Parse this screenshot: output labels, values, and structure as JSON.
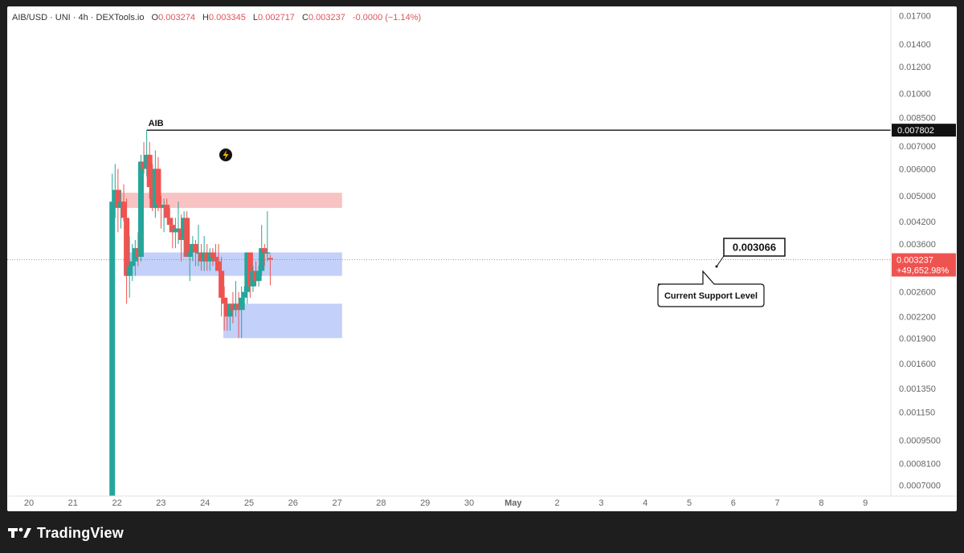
{
  "header": {
    "symbol": "AIB/USD · UNI · 4h · DEXTools.io",
    "open_label": "O",
    "open": "0.003274",
    "high_label": "H",
    "high": "0.003345",
    "low_label": "L",
    "low": "0.002717",
    "close_label": "C",
    "close": "0.003237",
    "change": "-0.0000 (−1.14%)"
  },
  "brand": {
    "name": "TradingView"
  },
  "colors": {
    "up": "#26a69a",
    "down": "#ef5350",
    "resistance": "#f8b8b8",
    "support": "#b8c8f8",
    "bg": "#ffffff",
    "page": "#1e1e1e"
  },
  "chart_data": {
    "type": "candlestick",
    "title": "AIB/USD · UNI · 4h · DEXTools.io",
    "y_scale": "log",
    "ylim": [
      0.00065,
      0.0175
    ],
    "y_ticks": [
      "0.01700",
      "0.01400",
      "0.01200",
      "0.01000",
      "0.008500",
      "0.007000",
      "0.006000",
      "0.005000",
      "0.004200",
      "0.003600",
      "0.002600",
      "0.002200",
      "0.001900",
      "0.001600",
      "0.001350",
      "0.001150",
      "0.0009500",
      "0.0008100",
      "0.0007000"
    ],
    "x_ticks": [
      "20",
      "21",
      "22",
      "23",
      "24",
      "25",
      "26",
      "27",
      "28",
      "29",
      "30",
      "May",
      "2",
      "3",
      "4",
      "5",
      "6",
      "7",
      "8",
      "9"
    ],
    "xlim": [
      19.65,
      29.8
    ],
    "candles": [
      {
        "t": 24.0,
        "o": 0.00065,
        "h": 0.0058,
        "l": 0.00065,
        "c": 0.0048
      },
      {
        "t": 24.15,
        "o": 0.0048,
        "h": 0.0062,
        "l": 0.0043,
        "c": 0.0052
      },
      {
        "t": 24.3,
        "o": 0.0052,
        "h": 0.006,
        "l": 0.0039,
        "c": 0.0046
      },
      {
        "t": 24.45,
        "o": 0.0046,
        "h": 0.0052,
        "l": 0.004,
        "c": 0.0048
      },
      {
        "t": 24.6,
        "o": 0.0048,
        "h": 0.0054,
        "l": 0.0042,
        "c": 0.0043
      },
      {
        "t": 24.75,
        "o": 0.0043,
        "h": 0.0049,
        "l": 0.0024,
        "c": 0.0029
      },
      {
        "t": 24.9,
        "o": 0.0029,
        "h": 0.0038,
        "l": 0.0025,
        "c": 0.0031
      },
      {
        "t": 25.05,
        "o": 0.0031,
        "h": 0.0036,
        "l": 0.0028,
        "c": 0.0032
      },
      {
        "t": 25.2,
        "o": 0.0032,
        "h": 0.0037,
        "l": 0.0029,
        "c": 0.0035
      },
      {
        "t": 25.35,
        "o": 0.0035,
        "h": 0.0039,
        "l": 0.0031,
        "c": 0.0033
      },
      {
        "t": 25.5,
        "o": 0.0033,
        "h": 0.0066,
        "l": 0.0032,
        "c": 0.0063
      },
      {
        "t": 25.65,
        "o": 0.0063,
        "h": 0.0072,
        "l": 0.0058,
        "c": 0.006
      },
      {
        "t": 25.8,
        "o": 0.006,
        "h": 0.0078,
        "l": 0.0057,
        "c": 0.0066
      },
      {
        "t": 25.95,
        "o": 0.0066,
        "h": 0.0072,
        "l": 0.0049,
        "c": 0.0053
      },
      {
        "t": 26.1,
        "o": 0.0053,
        "h": 0.0062,
        "l": 0.0045,
        "c": 0.0046
      },
      {
        "t": 26.25,
        "o": 0.0046,
        "h": 0.0068,
        "l": 0.0043,
        "c": 0.006
      },
      {
        "t": 26.4,
        "o": 0.006,
        "h": 0.0065,
        "l": 0.0045,
        "c": 0.0047
      },
      {
        "t": 26.55,
        "o": 0.0047,
        "h": 0.005,
        "l": 0.004,
        "c": 0.0046
      },
      {
        "t": 26.7,
        "o": 0.0046,
        "h": 0.0049,
        "l": 0.0039,
        "c": 0.0047
      },
      {
        "t": 26.85,
        "o": 0.0047,
        "h": 0.0049,
        "l": 0.0043,
        "c": 0.0043
      },
      {
        "t": 27.0,
        "o": 0.0043,
        "h": 0.0046,
        "l": 0.0039,
        "c": 0.0041
      },
      {
        "t": 27.15,
        "o": 0.0041,
        "h": 0.0043,
        "l": 0.0035,
        "c": 0.0039
      },
      {
        "t": 27.3,
        "o": 0.0039,
        "h": 0.0043,
        "l": 0.0035,
        "c": 0.004
      },
      {
        "t": 27.45,
        "o": 0.004,
        "h": 0.0048,
        "l": 0.0036,
        "c": 0.004
      },
      {
        "t": 27.6,
        "o": 0.004,
        "h": 0.0044,
        "l": 0.0032,
        "c": 0.0037
      },
      {
        "t": 27.75,
        "o": 0.0037,
        "h": 0.0045,
        "l": 0.0033,
        "c": 0.0043
      },
      {
        "t": 27.9,
        "o": 0.0043,
        "h": 0.0045,
        "l": 0.0033,
        "c": 0.0033
      },
      {
        "t": 28.05,
        "o": 0.0033,
        "h": 0.0036,
        "l": 0.0028,
        "c": 0.0034
      },
      {
        "t": 28.2,
        "o": 0.0034,
        "h": 0.0038,
        "l": 0.0032,
        "c": 0.0036
      },
      {
        "t": 28.35,
        "o": 0.0036,
        "h": 0.0037,
        "l": 0.0031,
        "c": 0.0034
      },
      {
        "t": 28.5,
        "o": 0.0034,
        "h": 0.0041,
        "l": 0.0031,
        "c": 0.0034
      },
      {
        "t": 28.65,
        "o": 0.0034,
        "h": 0.0036,
        "l": 0.003,
        "c": 0.0032
      },
      {
        "t": 28.8,
        "o": 0.0032,
        "h": 0.0038,
        "l": 0.003,
        "c": 0.0034
      },
      {
        "t": 28.95,
        "o": 0.0034,
        "h": 0.0036,
        "l": 0.003,
        "c": 0.0032
      },
      {
        "t": 29.1,
        "o": 0.0032,
        "h": 0.0035,
        "l": 0.003,
        "c": 0.0034
      },
      {
        "t": 29.25,
        "o": 0.0034,
        "h": 0.0035,
        "l": 0.0031,
        "c": 0.0033
      },
      {
        "t": 29.4,
        "o": 0.0033,
        "h": 0.0036,
        "l": 0.003,
        "c": 0.0032
      },
      {
        "t": 29.55,
        "o": 0.0032,
        "h": 0.0036,
        "l": 0.003,
        "c": 0.003
      },
      {
        "t": 29.7,
        "o": 0.003,
        "h": 0.0033,
        "l": 0.0022,
        "c": 0.0025
      },
      {
        "t": 29.85,
        "o": 0.0025,
        "h": 0.0027,
        "l": 0.002,
        "c": 0.0024
      },
      {
        "t": 30.0,
        "o": 0.0024,
        "h": 0.0025,
        "l": 0.002,
        "c": 0.0022
      },
      {
        "t": 30.15,
        "o": 0.0022,
        "h": 0.0024,
        "l": 0.002,
        "c": 0.0024
      },
      {
        "t": 30.3,
        "o": 0.0024,
        "h": 0.0026,
        "l": 0.0021,
        "c": 0.0023
      },
      {
        "t": 30.45,
        "o": 0.0023,
        "h": 0.0028,
        "l": 0.0022,
        "c": 0.0024
      },
      {
        "t": 30.6,
        "o": 0.0024,
        "h": 0.0026,
        "l": 0.0019,
        "c": 0.0023
      },
      {
        "t": 30.75,
        "o": 0.0023,
        "h": 0.0027,
        "l": 0.0019,
        "c": 0.0025
      },
      {
        "t": 30.9,
        "o": 0.0025,
        "h": 0.0027,
        "l": 0.0023,
        "c": 0.0026
      },
      {
        "t": 31.05,
        "o": 0.0026,
        "h": 0.0034,
        "l": 0.0024,
        "c": 0.0034
      },
      {
        "t": 31.2,
        "o": 0.0034,
        "h": 0.0034,
        "l": 0.0025,
        "c": 0.0027
      },
      {
        "t": 31.35,
        "o": 0.0027,
        "h": 0.0031,
        "l": 0.0026,
        "c": 0.003
      },
      {
        "t": 31.5,
        "o": 0.003,
        "h": 0.0032,
        "l": 0.0027,
        "c": 0.0028
      },
      {
        "t": 31.65,
        "o": 0.0028,
        "h": 0.0031,
        "l": 0.0027,
        "c": 0.003
      },
      {
        "t": 31.8,
        "o": 0.003,
        "h": 0.0041,
        "l": 0.0029,
        "c": 0.0035
      },
      {
        "t": 31.95,
        "o": 0.0035,
        "h": 0.0036,
        "l": 0.0031,
        "c": 0.0034
      },
      {
        "t": 32.1,
        "o": 0.0034,
        "h": 0.0045,
        "l": 0.0032,
        "c": 0.0034
      },
      {
        "t": 32.25,
        "o": 0.003274,
        "h": 0.003345,
        "l": 0.002717,
        "c": 0.003237
      }
    ],
    "zones": [
      {
        "name": "resistance",
        "y_low": 0.0046,
        "y_high": 0.0051,
        "x_from": 24.0,
        "x_to": 36.0
      },
      {
        "name": "support",
        "y_low": 0.0029,
        "y_high": 0.0034,
        "x_from": 24.7,
        "x_to": 36.0
      },
      {
        "name": "lower-support",
        "y_low": 0.0019,
        "y_high": 0.0024,
        "x_from": 29.8,
        "x_to": 36.0
      }
    ],
    "hline": {
      "label": "AIB",
      "value": 0.007802,
      "value_label": "0.007802",
      "x_from": 25.8
    },
    "current_price": {
      "value": 0.003237,
      "label": "0.003237",
      "change": "+49,652.98%"
    },
    "annotations": [
      {
        "text": "0.003066",
        "kind": "price-callout"
      },
      {
        "text": "Current Support Level",
        "kind": "callout"
      }
    ]
  }
}
